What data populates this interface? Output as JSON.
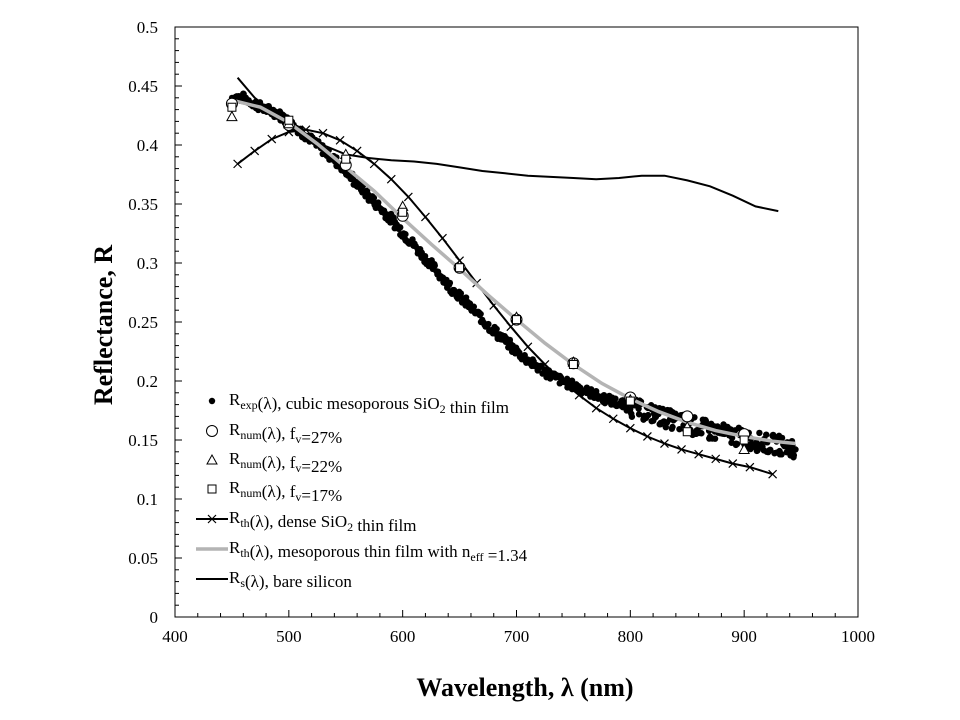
{
  "chart_data": {
    "type": "scatter",
    "xlabel": "Wavelength, λ (nm)",
    "ylabel": "Reflectance, R",
    "xlim": [
      400,
      1000
    ],
    "ylim": [
      0,
      0.5
    ],
    "x_ticks": [
      "400",
      "500",
      "600",
      "700",
      "800",
      "900",
      "1000"
    ],
    "y_ticks": [
      "0",
      "0.05",
      "0.1",
      "0.15",
      "0.2",
      "0.25",
      "0.3",
      "0.35",
      "0.4",
      "0.45",
      "0.5"
    ],
    "grid": false,
    "legend_position": "bottom-left",
    "series": [
      {
        "name": "R exp(λ), cubic mesoporous SiO2 thin film",
        "legend": {
          "main": "R",
          "sub": "exp",
          "rest1": "(λ), cubic mesoporous SiO",
          "sub2": "2",
          "rest2": " thin film"
        },
        "marker": "dot",
        "x": [
          450,
          460,
          470,
          480,
          490,
          500,
          510,
          520,
          530,
          540,
          550,
          560,
          570,
          580,
          590,
          600,
          610,
          620,
          630,
          640,
          650,
          660,
          670,
          680,
          690,
          700,
          710,
          720,
          730,
          740,
          750,
          760,
          770,
          780,
          790,
          800,
          810,
          820,
          830,
          840,
          850,
          860,
          870,
          880,
          890,
          900,
          910,
          920,
          930,
          940,
          945
        ],
        "y": [
          0.44,
          0.44,
          0.435,
          0.43,
          0.427,
          0.42,
          0.412,
          0.404,
          0.396,
          0.388,
          0.378,
          0.367,
          0.357,
          0.347,
          0.337,
          0.326,
          0.315,
          0.304,
          0.293,
          0.282,
          0.272,
          0.262,
          0.252,
          0.243,
          0.234,
          0.225,
          0.218,
          0.211,
          0.205,
          0.2,
          0.196,
          0.192,
          0.188,
          0.184,
          0.181,
          0.178,
          0.175,
          0.172,
          0.169,
          0.166,
          0.163,
          0.161,
          0.158,
          0.156,
          0.154,
          0.151,
          0.149,
          0.147,
          0.146,
          0.144,
          0.143
        ]
      },
      {
        "name": "R num(λ), fv=27%",
        "legend": {
          "main": "R",
          "sub": "num",
          "rest1": "(λ), f",
          "sub2": "v",
          "rest2": "=27%"
        },
        "marker": "circle",
        "x": [
          450,
          500,
          550,
          600,
          650,
          700,
          750,
          800,
          850,
          900
        ],
        "y": [
          0.435,
          0.417,
          0.383,
          0.34,
          0.296,
          0.252,
          0.215,
          0.186,
          0.17,
          0.155
        ]
      },
      {
        "name": "R num(λ), fv=22%",
        "legend": {
          "main": "R",
          "sub": "num",
          "rest1": "(λ), f",
          "sub2": "v",
          "rest2": "=22%"
        },
        "marker": "triangle",
        "x": [
          450,
          500,
          550,
          600,
          650,
          700,
          750,
          800,
          850,
          900
        ],
        "y": [
          0.424,
          0.418,
          0.392,
          0.348,
          0.298,
          0.254,
          0.216,
          0.184,
          0.161,
          0.142
        ]
      },
      {
        "name": "R num(λ), fv=17%",
        "legend": {
          "main": "R",
          "sub": "num",
          "rest1": "(λ), f",
          "sub2": "v",
          "rest2": "=17%"
        },
        "marker": "square",
        "x": [
          450,
          500,
          550,
          600,
          650,
          700,
          750,
          800,
          850,
          900
        ],
        "y": [
          0.432,
          0.421,
          0.388,
          0.343,
          0.296,
          0.252,
          0.214,
          0.183,
          0.157,
          0.15
        ]
      },
      {
        "name": "Rth(λ), dense SiO2 thin film",
        "legend": {
          "main": "R",
          "sub": "th",
          "rest1": "(λ), dense SiO",
          "sub2": "2",
          "rest2": " thin film"
        },
        "marker": "x-line",
        "x": [
          455,
          470,
          485,
          500,
          515,
          530,
          545,
          560,
          575,
          590,
          605,
          620,
          635,
          650,
          665,
          680,
          695,
          710,
          725,
          740,
          755,
          770,
          785,
          800,
          815,
          830,
          845,
          860,
          875,
          890,
          905,
          925
        ],
        "y": [
          0.384,
          0.395,
          0.405,
          0.411,
          0.413,
          0.41,
          0.404,
          0.395,
          0.384,
          0.371,
          0.356,
          0.339,
          0.321,
          0.302,
          0.283,
          0.264,
          0.246,
          0.229,
          0.214,
          0.2,
          0.188,
          0.177,
          0.168,
          0.16,
          0.153,
          0.147,
          0.142,
          0.138,
          0.134,
          0.13,
          0.127,
          0.121
        ]
      },
      {
        "name": "Rth(λ), mesoporous thin film with neff =1.34",
        "legend": {
          "main": "R",
          "sub": "th",
          "rest1": "(λ), mesoporous thin film with n",
          "sub2": "eff",
          "rest2": " =1.34"
        },
        "marker": "gray-line",
        "x": [
          450,
          475,
          500,
          525,
          550,
          575,
          600,
          625,
          650,
          675,
          700,
          725,
          750,
          775,
          800,
          825,
          850,
          875,
          900,
          925,
          945
        ],
        "y": [
          0.438,
          0.432,
          0.419,
          0.401,
          0.381,
          0.361,
          0.338,
          0.316,
          0.295,
          0.273,
          0.252,
          0.232,
          0.214,
          0.198,
          0.185,
          0.174,
          0.165,
          0.158,
          0.153,
          0.149,
          0.147
        ]
      },
      {
        "name": "Rs(λ), bare silicon",
        "legend": {
          "main": "R",
          "sub": "s",
          "rest1": "(λ), bare silicon",
          "sub2": "",
          "rest2": ""
        },
        "marker": "black-line",
        "x": [
          455,
          470,
          490,
          510,
          530,
          550,
          570,
          590,
          610,
          630,
          650,
          670,
          690,
          710,
          730,
          750,
          770,
          790,
          810,
          830,
          850,
          870,
          890,
          910,
          930
        ],
        "y": [
          0.457,
          0.44,
          0.425,
          0.413,
          0.4,
          0.392,
          0.389,
          0.387,
          0.386,
          0.384,
          0.381,
          0.378,
          0.376,
          0.374,
          0.373,
          0.372,
          0.371,
          0.372,
          0.374,
          0.374,
          0.37,
          0.365,
          0.357,
          0.348,
          0.344
        ]
      }
    ]
  }
}
